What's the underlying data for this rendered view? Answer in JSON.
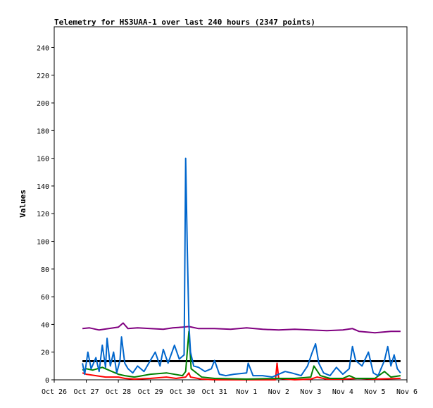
{
  "chart_data": {
    "type": "line",
    "title": "Telemetry for HS3UAA-1 over last 240 hours (2347 points)",
    "ylabel": "Values",
    "xlabel": "",
    "ylim": [
      0,
      255
    ],
    "y_ticks": [
      0,
      20,
      40,
      60,
      80,
      100,
      120,
      140,
      160,
      180,
      200,
      220,
      240
    ],
    "x_range_days": [
      0,
      11
    ],
    "x_ticks": [
      {
        "label": "Oct 26",
        "day": 0
      },
      {
        "label": "Oct 27",
        "day": 1
      },
      {
        "label": "Oct 28",
        "day": 2
      },
      {
        "label": "Oct 29",
        "day": 3
      },
      {
        "label": "Oct 30",
        "day": 4
      },
      {
        "label": "Oct 31",
        "day": 5
      },
      {
        "label": "Nov 1",
        "day": 6
      },
      {
        "label": "Nov 2",
        "day": 7
      },
      {
        "label": "Nov 3",
        "day": 8
      },
      {
        "label": "Nov 4",
        "day": 9
      },
      {
        "label": "Nov 5",
        "day": 10
      },
      {
        "label": "Nov 6",
        "day": 11
      }
    ],
    "grid": false,
    "series": [
      {
        "color": "#800080",
        "points": [
          [
            0.88,
            37
          ],
          [
            1.1,
            37.5
          ],
          [
            1.4,
            36
          ],
          [
            1.7,
            37
          ],
          [
            2,
            38
          ],
          [
            2.15,
            41
          ],
          [
            2.3,
            37
          ],
          [
            2.6,
            37.5
          ],
          [
            3,
            37
          ],
          [
            3.4,
            36.5
          ],
          [
            3.7,
            37.5
          ],
          [
            4,
            38
          ],
          [
            4.2,
            38.5
          ],
          [
            4.5,
            37
          ],
          [
            5,
            37
          ],
          [
            5.5,
            36.5
          ],
          [
            6,
            37.5
          ],
          [
            6.5,
            36.5
          ],
          [
            7,
            36
          ],
          [
            7.5,
            36.5
          ],
          [
            8,
            36
          ],
          [
            8.5,
            35.5
          ],
          [
            9,
            36
          ],
          [
            9.3,
            37
          ],
          [
            9.5,
            35
          ],
          [
            10,
            34
          ],
          [
            10.5,
            35
          ],
          [
            10.8,
            35
          ]
        ]
      },
      {
        "color": "#000000",
        "points": [
          [
            0.88,
            13.5
          ],
          [
            2,
            13.5
          ],
          [
            4,
            13.5
          ],
          [
            6,
            13.5
          ],
          [
            8,
            13.5
          ],
          [
            10,
            13.5
          ],
          [
            10.8,
            13.5
          ]
        ]
      },
      {
        "color": "#ff0000",
        "points": [
          [
            0.88,
            5
          ],
          [
            1,
            4
          ],
          [
            1.3,
            3
          ],
          [
            1.6,
            2
          ],
          [
            2,
            2
          ],
          [
            2.2,
            1
          ],
          [
            2.5,
            0.5
          ],
          [
            3,
            1
          ],
          [
            3.5,
            2
          ],
          [
            3.8,
            1
          ],
          [
            4.1,
            2
          ],
          [
            4.2,
            5
          ],
          [
            4.25,
            2
          ],
          [
            4.6,
            0.5
          ],
          [
            5,
            0
          ],
          [
            6,
            0
          ],
          [
            6.9,
            0
          ],
          [
            6.95,
            12
          ],
          [
            7,
            1
          ],
          [
            7.5,
            0
          ],
          [
            8,
            0.5
          ],
          [
            8.2,
            2
          ],
          [
            8.5,
            0.5
          ],
          [
            9,
            0.5
          ],
          [
            9.5,
            1
          ],
          [
            10,
            0.5
          ],
          [
            10.8,
            1
          ]
        ]
      },
      {
        "color": "#008000",
        "points": [
          [
            0.88,
            7
          ],
          [
            1,
            8
          ],
          [
            1.2,
            7
          ],
          [
            1.5,
            9
          ],
          [
            1.8,
            6
          ],
          [
            2,
            4
          ],
          [
            2.2,
            3
          ],
          [
            2.5,
            2
          ],
          [
            3,
            4
          ],
          [
            3.5,
            5
          ],
          [
            4,
            3
          ],
          [
            4.1,
            6
          ],
          [
            4.2,
            35
          ],
          [
            4.27,
            8
          ],
          [
            4.6,
            2
          ],
          [
            5,
            1
          ],
          [
            6,
            0.5
          ],
          [
            7,
            1
          ],
          [
            7.5,
            1
          ],
          [
            8,
            2
          ],
          [
            8.1,
            10
          ],
          [
            8.3,
            3
          ],
          [
            8.6,
            1
          ],
          [
            9,
            1
          ],
          [
            9.2,
            3
          ],
          [
            9.4,
            1
          ],
          [
            10,
            1
          ],
          [
            10.3,
            6
          ],
          [
            10.5,
            2
          ],
          [
            10.8,
            3
          ]
        ]
      },
      {
        "color": "#0066cc",
        "points": [
          [
            0.88,
            12
          ],
          [
            0.95,
            4
          ],
          [
            1.05,
            20
          ],
          [
            1.15,
            8
          ],
          [
            1.3,
            16
          ],
          [
            1.4,
            6
          ],
          [
            1.5,
            25
          ],
          [
            1.6,
            9
          ],
          [
            1.65,
            30
          ],
          [
            1.75,
            10
          ],
          [
            1.85,
            20
          ],
          [
            1.95,
            5
          ],
          [
            2.05,
            14
          ],
          [
            2.1,
            31
          ],
          [
            2.2,
            12
          ],
          [
            2.3,
            8
          ],
          [
            2.45,
            5
          ],
          [
            2.6,
            10
          ],
          [
            2.8,
            6
          ],
          [
            3,
            14
          ],
          [
            3.15,
            20
          ],
          [
            3.3,
            10
          ],
          [
            3.4,
            22
          ],
          [
            3.55,
            12
          ],
          [
            3.75,
            25
          ],
          [
            3.9,
            15
          ],
          [
            4.05,
            18
          ],
          [
            4.1,
            160
          ],
          [
            4.15,
            95
          ],
          [
            4.2,
            40
          ],
          [
            4.25,
            20
          ],
          [
            4.35,
            10
          ],
          [
            4.5,
            9
          ],
          [
            4.7,
            6
          ],
          [
            4.9,
            8
          ],
          [
            5,
            14
          ],
          [
            5.15,
            4
          ],
          [
            5.35,
            3
          ],
          [
            5.6,
            4
          ],
          [
            6,
            5
          ],
          [
            6.05,
            12
          ],
          [
            6.2,
            3
          ],
          [
            6.5,
            3
          ],
          [
            6.8,
            2
          ],
          [
            7,
            4
          ],
          [
            7.2,
            6
          ],
          [
            7.4,
            5
          ],
          [
            7.7,
            3
          ],
          [
            7.9,
            10
          ],
          [
            8.05,
            20
          ],
          [
            8.15,
            26
          ],
          [
            8.25,
            12
          ],
          [
            8.4,
            5
          ],
          [
            8.6,
            3
          ],
          [
            8.8,
            9
          ],
          [
            9,
            4
          ],
          [
            9.2,
            8
          ],
          [
            9.3,
            24
          ],
          [
            9.4,
            14
          ],
          [
            9.6,
            10
          ],
          [
            9.8,
            20
          ],
          [
            9.95,
            5
          ],
          [
            10.1,
            3
          ],
          [
            10.3,
            14
          ],
          [
            10.4,
            24
          ],
          [
            10.5,
            10
          ],
          [
            10.6,
            18
          ],
          [
            10.7,
            8
          ],
          [
            10.8,
            5
          ]
        ]
      }
    ]
  }
}
